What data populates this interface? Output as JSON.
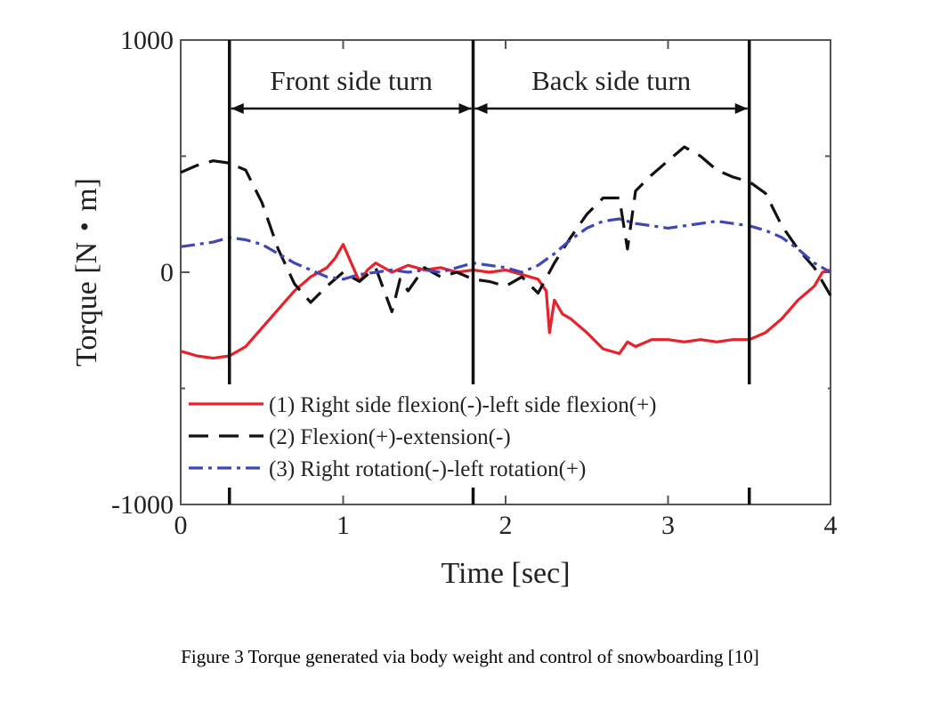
{
  "caption": "Figure 3 Torque generated via body weight and control of snowboarding [10]",
  "chart_data": {
    "type": "line",
    "xlabel": "Time [sec]",
    "ylabel": "Torque [N・m]",
    "xlim": [
      0,
      4
    ],
    "ylim": [
      -1000,
      1000
    ],
    "x_ticks": [
      0,
      1,
      2,
      3,
      4
    ],
    "x_tick_labels": [
      "0",
      "1",
      "2",
      "3",
      "4"
    ],
    "y_ticks": [
      -1000,
      0,
      1000
    ],
    "y_tick_labels": [
      "-1000",
      "0",
      "1000"
    ],
    "grid": false,
    "legend_position": "lower-left",
    "vertical_lines": [
      0.3,
      1.8,
      3.5
    ],
    "annotations": [
      {
        "text": "Front side turn",
        "from": 0.3,
        "to": 1.8
      },
      {
        "text": "Back side turn",
        "from": 1.8,
        "to": 3.5
      }
    ],
    "series": [
      {
        "name": "(1) Right side flexion(-)-left side flexion(+)",
        "color": "#e8212a",
        "dash": "solid",
        "points": [
          [
            0,
            -340
          ],
          [
            0.1,
            -360
          ],
          [
            0.2,
            -370
          ],
          [
            0.3,
            -360
          ],
          [
            0.4,
            -320
          ],
          [
            0.5,
            -240
          ],
          [
            0.6,
            -160
          ],
          [
            0.7,
            -80
          ],
          [
            0.8,
            -20
          ],
          [
            0.9,
            20
          ],
          [
            0.95,
            60
          ],
          [
            1.0,
            120
          ],
          [
            1.05,
            40
          ],
          [
            1.1,
            -40
          ],
          [
            1.15,
            10
          ],
          [
            1.2,
            40
          ],
          [
            1.3,
            0
          ],
          [
            1.4,
            30
          ],
          [
            1.5,
            10
          ],
          [
            1.6,
            20
          ],
          [
            1.7,
            0
          ],
          [
            1.8,
            10
          ],
          [
            1.9,
            0
          ],
          [
            2.0,
            10
          ],
          [
            2.1,
            -10
          ],
          [
            2.2,
            -30
          ],
          [
            2.25,
            -80
          ],
          [
            2.27,
            -260
          ],
          [
            2.3,
            -120
          ],
          [
            2.35,
            -180
          ],
          [
            2.4,
            -200
          ],
          [
            2.5,
            -260
          ],
          [
            2.6,
            -330
          ],
          [
            2.7,
            -350
          ],
          [
            2.75,
            -300
          ],
          [
            2.8,
            -320
          ],
          [
            2.9,
            -290
          ],
          [
            3.0,
            -290
          ],
          [
            3.1,
            -300
          ],
          [
            3.2,
            -290
          ],
          [
            3.3,
            -300
          ],
          [
            3.4,
            -290
          ],
          [
            3.5,
            -290
          ],
          [
            3.6,
            -260
          ],
          [
            3.7,
            -200
          ],
          [
            3.8,
            -120
          ],
          [
            3.9,
            -60
          ],
          [
            3.95,
            0
          ],
          [
            4.0,
            10
          ]
        ]
      },
      {
        "name": "(2) Flexion(+)-extension(-)",
        "color": "#111111",
        "dash": "long-dash",
        "points": [
          [
            0,
            430
          ],
          [
            0.1,
            460
          ],
          [
            0.2,
            480
          ],
          [
            0.3,
            470
          ],
          [
            0.4,
            440
          ],
          [
            0.5,
            300
          ],
          [
            0.6,
            100
          ],
          [
            0.7,
            -50
          ],
          [
            0.8,
            -130
          ],
          [
            0.9,
            -60
          ],
          [
            1.0,
            0
          ],
          [
            1.1,
            -40
          ],
          [
            1.2,
            20
          ],
          [
            1.3,
            -170
          ],
          [
            1.35,
            -30
          ],
          [
            1.4,
            -80
          ],
          [
            1.5,
            20
          ],
          [
            1.6,
            -20
          ],
          [
            1.7,
            0
          ],
          [
            1.8,
            -30
          ],
          [
            1.9,
            -40
          ],
          [
            2.0,
            -60
          ],
          [
            2.1,
            -20
          ],
          [
            2.2,
            -90
          ],
          [
            2.3,
            40
          ],
          [
            2.4,
            150
          ],
          [
            2.5,
            250
          ],
          [
            2.6,
            320
          ],
          [
            2.7,
            320
          ],
          [
            2.75,
            100
          ],
          [
            2.8,
            350
          ],
          [
            2.9,
            420
          ],
          [
            3.0,
            480
          ],
          [
            3.1,
            540
          ],
          [
            3.2,
            500
          ],
          [
            3.3,
            440
          ],
          [
            3.4,
            410
          ],
          [
            3.5,
            390
          ],
          [
            3.6,
            340
          ],
          [
            3.7,
            200
          ],
          [
            3.8,
            100
          ],
          [
            3.9,
            20
          ],
          [
            4.0,
            -100
          ]
        ]
      },
      {
        "name": "(3) Right rotation(-)-left rotation(+)",
        "color": "#3f47b6",
        "dash": "dash-dot",
        "points": [
          [
            0,
            110
          ],
          [
            0.1,
            120
          ],
          [
            0.2,
            130
          ],
          [
            0.3,
            150
          ],
          [
            0.4,
            140
          ],
          [
            0.5,
            120
          ],
          [
            0.6,
            80
          ],
          [
            0.7,
            40
          ],
          [
            0.8,
            10
          ],
          [
            0.9,
            -20
          ],
          [
            1.0,
            -30
          ],
          [
            1.1,
            -10
          ],
          [
            1.2,
            0
          ],
          [
            1.3,
            10
          ],
          [
            1.4,
            0
          ],
          [
            1.5,
            10
          ],
          [
            1.6,
            0
          ],
          [
            1.7,
            20
          ],
          [
            1.8,
            40
          ],
          [
            1.9,
            30
          ],
          [
            2.0,
            20
          ],
          [
            2.1,
            0
          ],
          [
            2.2,
            30
          ],
          [
            2.3,
            80
          ],
          [
            2.4,
            140
          ],
          [
            2.5,
            190
          ],
          [
            2.6,
            220
          ],
          [
            2.7,
            230
          ],
          [
            2.8,
            210
          ],
          [
            2.9,
            200
          ],
          [
            3.0,
            190
          ],
          [
            3.1,
            200
          ],
          [
            3.2,
            210
          ],
          [
            3.3,
            220
          ],
          [
            3.4,
            210
          ],
          [
            3.5,
            200
          ],
          [
            3.6,
            180
          ],
          [
            3.7,
            150
          ],
          [
            3.8,
            100
          ],
          [
            3.9,
            40
          ],
          [
            4.0,
            0
          ]
        ]
      }
    ]
  }
}
